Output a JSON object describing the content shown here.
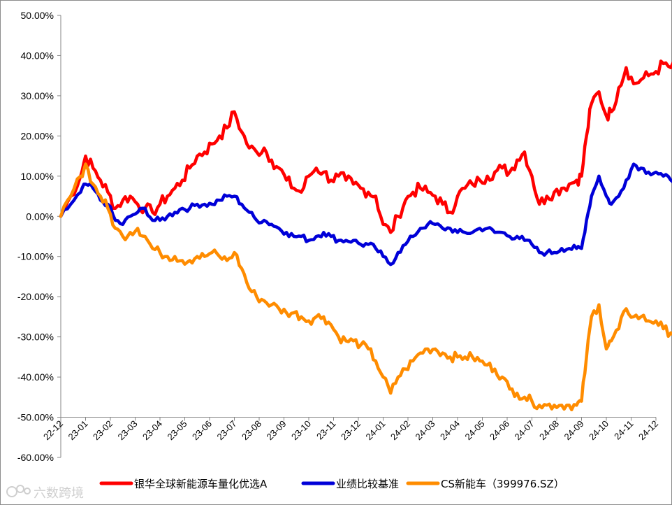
{
  "chart_data": {
    "type": "line",
    "title": "",
    "xlabel": "",
    "ylabel": "",
    "ylim": [
      -60,
      50
    ],
    "yticks": [
      50,
      40,
      30,
      20,
      10,
      0,
      -10,
      -20,
      -30,
      -40,
      -50,
      -60
    ],
    "ytick_labels": [
      "50.00%",
      "40.00%",
      "30.00%",
      "20.00%",
      "10.00%",
      "0.00%",
      "-10.00%",
      "-20.00%",
      "-30.00%",
      "-40.00%",
      "-50.00%",
      "-60.00%"
    ],
    "x_axis_value": -50,
    "categories": [
      "22-12",
      "23-01",
      "23-02",
      "23-03",
      "23-04",
      "23-05",
      "23-06",
      "23-07",
      "23-08",
      "23-09",
      "23-10",
      "23-11",
      "23-12",
      "24-01",
      "24-02",
      "24-03",
      "24-04",
      "24-05",
      "24-06",
      "24-07",
      "24-08",
      "24-09",
      "24-10",
      "24-11",
      "24-12"
    ],
    "legend_position": "bottom",
    "series": [
      {
        "name": "银华全球新能源车量化优选A",
        "color": "#ff0000",
        "values": [
          [
            0.0,
            0
          ],
          [
            0.4,
            5
          ],
          [
            0.8,
            10
          ],
          [
            1.0,
            15
          ],
          [
            1.3,
            12
          ],
          [
            1.6,
            9
          ],
          [
            1.9,
            6
          ],
          [
            2.2,
            2
          ],
          [
            2.5,
            4
          ],
          [
            2.8,
            5
          ],
          [
            3.1,
            3
          ],
          [
            3.4,
            2
          ],
          [
            3.7,
            1
          ],
          [
            4.0,
            3
          ],
          [
            4.3,
            5
          ],
          [
            4.6,
            7
          ],
          [
            4.9,
            9
          ],
          [
            5.2,
            12
          ],
          [
            5.5,
            15
          ],
          [
            5.8,
            16
          ],
          [
            6.1,
            18
          ],
          [
            6.4,
            20
          ],
          [
            6.7,
            22
          ],
          [
            7.0,
            26
          ],
          [
            7.3,
            21
          ],
          [
            7.6,
            17
          ],
          [
            7.9,
            16
          ],
          [
            8.2,
            17
          ],
          [
            8.5,
            14
          ],
          [
            8.8,
            12
          ],
          [
            9.1,
            9
          ],
          [
            9.4,
            7
          ],
          [
            9.7,
            6
          ],
          [
            10.0,
            10
          ],
          [
            10.3,
            12
          ],
          [
            10.6,
            11
          ],
          [
            10.9,
            9
          ],
          [
            11.2,
            10
          ],
          [
            11.5,
            9
          ],
          [
            11.8,
            8
          ],
          [
            12.1,
            7
          ],
          [
            12.4,
            6
          ],
          [
            12.7,
            5
          ],
          [
            13.0,
            -2
          ],
          [
            13.3,
            -4
          ],
          [
            13.6,
            0
          ],
          [
            13.9,
            4
          ],
          [
            14.2,
            6
          ],
          [
            14.5,
            7
          ],
          [
            14.8,
            6
          ],
          [
            15.1,
            5
          ],
          [
            15.4,
            3
          ],
          [
            15.7,
            1
          ],
          [
            16.0,
            5
          ],
          [
            16.3,
            7
          ],
          [
            16.6,
            8
          ],
          [
            16.9,
            9
          ],
          [
            17.2,
            10
          ],
          [
            17.5,
            11
          ],
          [
            17.8,
            12
          ],
          [
            18.1,
            11
          ],
          [
            18.4,
            14
          ],
          [
            18.7,
            16
          ],
          [
            19.0,
            10
          ],
          [
            19.3,
            3
          ],
          [
            19.6,
            5
          ],
          [
            19.9,
            6
          ],
          [
            20.2,
            7
          ],
          [
            20.5,
            8
          ],
          [
            20.8,
            9
          ],
          [
            21.0,
            10
          ],
          [
            21.2,
            20
          ],
          [
            21.4,
            28
          ],
          [
            21.7,
            31
          ],
          [
            22.0,
            25
          ],
          [
            22.2,
            26
          ],
          [
            22.5,
            32
          ],
          [
            22.8,
            37
          ],
          [
            23.1,
            33
          ],
          [
            23.4,
            34
          ],
          [
            23.7,
            35
          ],
          [
            24.0,
            36
          ],
          [
            24.3,
            38
          ],
          [
            24.6,
            37
          ],
          [
            24.9,
            37
          ],
          [
            25.0,
            35
          ]
        ]
      },
      {
        "name": "业绩比较基准",
        "color": "#0000d8",
        "values": [
          [
            0.0,
            0
          ],
          [
            0.4,
            3
          ],
          [
            0.8,
            6
          ],
          [
            1.0,
            8
          ],
          [
            1.3,
            7
          ],
          [
            1.6,
            4
          ],
          [
            1.9,
            3
          ],
          [
            2.2,
            -1
          ],
          [
            2.5,
            -2
          ],
          [
            2.8,
            0
          ],
          [
            3.1,
            1
          ],
          [
            3.4,
            2
          ],
          [
            3.7,
            -1
          ],
          [
            4.0,
            -1
          ],
          [
            4.3,
            0
          ],
          [
            4.6,
            1
          ],
          [
            4.9,
            2
          ],
          [
            5.2,
            2
          ],
          [
            5.5,
            3
          ],
          [
            5.8,
            3
          ],
          [
            6.1,
            3
          ],
          [
            6.4,
            4
          ],
          [
            6.7,
            5
          ],
          [
            7.0,
            5
          ],
          [
            7.3,
            3
          ],
          [
            7.6,
            1
          ],
          [
            7.9,
            -1
          ],
          [
            8.2,
            -1
          ],
          [
            8.5,
            -2
          ],
          [
            8.8,
            -3
          ],
          [
            9.1,
            -4
          ],
          [
            9.4,
            -5
          ],
          [
            9.7,
            -5
          ],
          [
            10.0,
            -6
          ],
          [
            10.3,
            -5
          ],
          [
            10.6,
            -4
          ],
          [
            10.9,
            -5
          ],
          [
            11.2,
            -6
          ],
          [
            11.5,
            -6
          ],
          [
            11.8,
            -6
          ],
          [
            12.1,
            -7
          ],
          [
            12.4,
            -7
          ],
          [
            12.7,
            -8
          ],
          [
            13.0,
            -10
          ],
          [
            13.3,
            -12
          ],
          [
            13.6,
            -9
          ],
          [
            13.9,
            -7
          ],
          [
            14.2,
            -5
          ],
          [
            14.5,
            -3
          ],
          [
            14.8,
            -2
          ],
          [
            15.1,
            -2
          ],
          [
            15.4,
            -3
          ],
          [
            15.7,
            -3
          ],
          [
            16.0,
            -4
          ],
          [
            16.3,
            -4
          ],
          [
            16.6,
            -4
          ],
          [
            16.9,
            -3
          ],
          [
            17.2,
            -3
          ],
          [
            17.5,
            -4
          ],
          [
            17.8,
            -4
          ],
          [
            18.1,
            -5
          ],
          [
            18.4,
            -5
          ],
          [
            18.7,
            -6
          ],
          [
            19.0,
            -7
          ],
          [
            19.3,
            -9
          ],
          [
            19.6,
            -9
          ],
          [
            19.9,
            -9
          ],
          [
            20.2,
            -8
          ],
          [
            20.5,
            -8
          ],
          [
            20.8,
            -8
          ],
          [
            21.0,
            -8
          ],
          [
            21.2,
            -1
          ],
          [
            21.4,
            5
          ],
          [
            21.7,
            10
          ],
          [
            22.0,
            5
          ],
          [
            22.2,
            3
          ],
          [
            22.5,
            5
          ],
          [
            22.8,
            9
          ],
          [
            23.1,
            13
          ],
          [
            23.4,
            12
          ],
          [
            23.7,
            11
          ],
          [
            24.0,
            11
          ],
          [
            24.3,
            10
          ],
          [
            24.6,
            9
          ],
          [
            24.9,
            9
          ],
          [
            25.0,
            7
          ]
        ]
      },
      {
        "name": "CS新能车（399976.SZ）",
        "color": "#ff8c00",
        "values": [
          [
            0.0,
            0
          ],
          [
            0.4,
            5
          ],
          [
            0.8,
            10
          ],
          [
            1.0,
            13
          ],
          [
            1.3,
            8
          ],
          [
            1.6,
            5
          ],
          [
            1.9,
            2
          ],
          [
            2.2,
            -3
          ],
          [
            2.5,
            -5
          ],
          [
            2.8,
            -4
          ],
          [
            3.1,
            -3
          ],
          [
            3.4,
            -5
          ],
          [
            3.7,
            -8
          ],
          [
            4.0,
            -9
          ],
          [
            4.3,
            -10
          ],
          [
            4.6,
            -10
          ],
          [
            4.9,
            -11
          ],
          [
            5.2,
            -11
          ],
          [
            5.5,
            -10
          ],
          [
            5.8,
            -10
          ],
          [
            6.1,
            -9
          ],
          [
            6.4,
            -10
          ],
          [
            6.7,
            -11
          ],
          [
            7.0,
            -9
          ],
          [
            7.3,
            -13
          ],
          [
            7.6,
            -18
          ],
          [
            7.9,
            -20
          ],
          [
            8.2,
            -21
          ],
          [
            8.5,
            -22
          ],
          [
            8.8,
            -23
          ],
          [
            9.1,
            -24
          ],
          [
            9.4,
            -24
          ],
          [
            9.7,
            -25
          ],
          [
            10.0,
            -26
          ],
          [
            10.3,
            -25
          ],
          [
            10.6,
            -25
          ],
          [
            10.9,
            -27
          ],
          [
            11.2,
            -30
          ],
          [
            11.5,
            -31
          ],
          [
            11.8,
            -31
          ],
          [
            12.1,
            -32
          ],
          [
            12.4,
            -33
          ],
          [
            12.7,
            -36
          ],
          [
            13.0,
            -40
          ],
          [
            13.3,
            -44
          ],
          [
            13.6,
            -40
          ],
          [
            13.9,
            -38
          ],
          [
            14.2,
            -36
          ],
          [
            14.5,
            -34
          ],
          [
            14.8,
            -33
          ],
          [
            15.1,
            -33
          ],
          [
            15.4,
            -34
          ],
          [
            15.7,
            -35
          ],
          [
            16.0,
            -35
          ],
          [
            16.3,
            -35
          ],
          [
            16.6,
            -35
          ],
          [
            16.9,
            -36
          ],
          [
            17.2,
            -37
          ],
          [
            17.5,
            -38
          ],
          [
            17.8,
            -40
          ],
          [
            18.1,
            -43
          ],
          [
            18.4,
            -44
          ],
          [
            18.7,
            -45
          ],
          [
            19.0,
            -46
          ],
          [
            19.3,
            -47
          ],
          [
            19.6,
            -47
          ],
          [
            19.9,
            -47
          ],
          [
            20.2,
            -47
          ],
          [
            20.5,
            -47
          ],
          [
            20.8,
            -47
          ],
          [
            21.0,
            -46
          ],
          [
            21.2,
            -35
          ],
          [
            21.4,
            -25
          ],
          [
            21.7,
            -22
          ],
          [
            22.0,
            -33
          ],
          [
            22.2,
            -31
          ],
          [
            22.5,
            -28
          ],
          [
            22.8,
            -23
          ],
          [
            23.1,
            -25
          ],
          [
            23.4,
            -25
          ],
          [
            23.7,
            -26
          ],
          [
            24.0,
            -26
          ],
          [
            24.3,
            -28
          ],
          [
            24.6,
            -29
          ],
          [
            24.9,
            -29
          ],
          [
            25.0,
            -30
          ]
        ]
      }
    ]
  },
  "watermark": "六数跨境"
}
